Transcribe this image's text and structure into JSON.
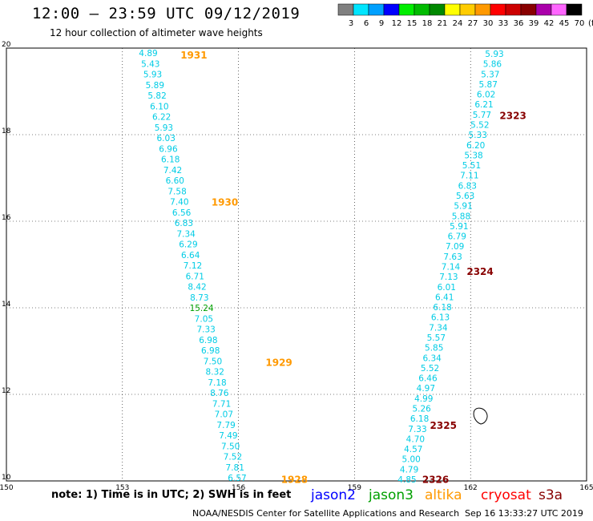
{
  "title": "12:00 – 23:59 UTC 09/12/2019",
  "subtitle": "12 hour collection of altimeter wave heights",
  "colorbar": {
    "labels": [
      "3",
      "6",
      "9",
      "12",
      "15",
      "18",
      "21",
      "24",
      "27",
      "30",
      "33",
      "36",
      "39",
      "42",
      "45",
      "70"
    ],
    "unit": "(ft)",
    "colors": [
      "#808080",
      "#00e5ff",
      "#00a0ff",
      "#0000ff",
      "#00ee00",
      "#00bb00",
      "#008800",
      "#ffff00",
      "#ffcc00",
      "#ff9900",
      "#ff0000",
      "#cc0000",
      "#880000",
      "#aa00aa",
      "#ff66ff",
      "#000000"
    ]
  },
  "map": {
    "lon_range": [
      150,
      165
    ],
    "lat_range": [
      10,
      20
    ],
    "x_ticks": [
      150,
      153,
      156,
      159,
      162,
      165
    ],
    "y_ticks": [
      10,
      12,
      14,
      16,
      18,
      20
    ]
  },
  "tracks": [
    {
      "name": "west",
      "values": [
        "4.89",
        "5.43",
        "5.93",
        "5.89",
        "5.82",
        "6.10",
        "6.22",
        "5.93",
        "6.03",
        "6.96",
        "6.18",
        "7.42",
        "6.60",
        "7.58",
        "7.40",
        "6.56",
        "6.83",
        "7.34",
        "6.29",
        "6.64",
        "7.12",
        "6.71",
        "8.42",
        "8.73",
        "15.24",
        "7.05",
        "7.33",
        "6.98",
        "6.98",
        "7.50",
        "8.32",
        "7.18",
        "8.76",
        "7.71",
        "7.07",
        "7.79",
        "7.49",
        "7.50",
        "7.52",
        "7.81",
        "6.57"
      ],
      "colors": [
        "cyan",
        "cyan",
        "cyan",
        "cyan",
        "cyan",
        "cyan",
        "cyan",
        "cyan",
        "cyan",
        "cyan",
        "cyan",
        "cyan",
        "cyan",
        "cyan",
        "cyan",
        "cyan",
        "cyan",
        "cyan",
        "cyan",
        "cyan",
        "cyan",
        "cyan",
        "cyan",
        "cyan",
        "green",
        "cyan",
        "cyan",
        "cyan",
        "cyan",
        "cyan",
        "cyan",
        "cyan",
        "cyan",
        "cyan",
        "cyan",
        "cyan",
        "cyan",
        "cyan",
        "cyan",
        "cyan",
        "cyan"
      ]
    },
    {
      "name": "east",
      "values": [
        "5.93",
        "5.86",
        "5.37",
        "5.87",
        "6.02",
        "6.21",
        "5.77",
        "5.52",
        "5.33",
        "6.20",
        "5.38",
        "5.51",
        "7.11",
        "6.83",
        "5.63",
        "5.91",
        "5.88",
        "5.91",
        "6.79",
        "7.09",
        "7.63",
        "7.14",
        "7.13",
        "6.01",
        "6.41",
        "6.18",
        "6.13",
        "7.34",
        "5.57",
        "5.85",
        "6.34",
        "5.52",
        "6.46",
        "4.97",
        "4.99",
        "5.26",
        "6.18",
        "7.33",
        "4.70",
        "4.57",
        "5.00",
        "4.79",
        "4.85"
      ],
      "colors": [
        "cyan",
        "cyan",
        "cyan",
        "cyan",
        "cyan",
        "cyan",
        "cyan",
        "cyan",
        "cyan",
        "cyan",
        "cyan",
        "cyan",
        "cyan",
        "cyan",
        "cyan",
        "cyan",
        "cyan",
        "cyan",
        "cyan",
        "cyan",
        "cyan",
        "cyan",
        "cyan",
        "cyan",
        "cyan",
        "cyan",
        "cyan",
        "cyan",
        "cyan",
        "cyan",
        "cyan",
        "cyan",
        "cyan",
        "cyan",
        "cyan",
        "cyan",
        "cyan",
        "cyan",
        "cyan",
        "cyan",
        "cyan",
        "cyan",
        "cyan"
      ]
    }
  ],
  "time_labels": [
    {
      "text": "1931",
      "color": "#ff9900",
      "lon": 154.5,
      "lat": 19.85
    },
    {
      "text": "1930",
      "color": "#ff9900",
      "lon": 155.3,
      "lat": 16.45
    },
    {
      "text": "1929",
      "color": "#ff9900",
      "lon": 156.7,
      "lat": 12.75
    },
    {
      "text": "1928",
      "color": "#ff9900",
      "lon": 157.1,
      "lat": 10.05
    },
    {
      "text": "2323",
      "color": "#880000",
      "lon": 162.75,
      "lat": 18.45
    },
    {
      "text": "2324",
      "color": "#880000",
      "lon": 161.9,
      "lat": 14.85
    },
    {
      "text": "2325",
      "color": "#880000",
      "lon": 160.95,
      "lat": 11.3
    },
    {
      "text": "2326",
      "color": "#880000",
      "lon": 160.75,
      "lat": 10.05
    }
  ],
  "footer": {
    "note": "note: 1) Time is in UTC; 2) SWH is in feet",
    "legend": [
      {
        "label": "jason2",
        "color": "#0000ff"
      },
      {
        "label": "jason3",
        "color": "#00a000"
      },
      {
        "label": "altika",
        "color": "#ff9900"
      },
      {
        "label": "cryosat",
        "color": "#ff0000"
      },
      {
        "label": "s3a",
        "color": "#880000"
      }
    ],
    "credit": "NOAA/NESDIS Center for Satellite Applications and Research",
    "timestamp": "Sep 16 13:33:27 UTC 2019"
  }
}
